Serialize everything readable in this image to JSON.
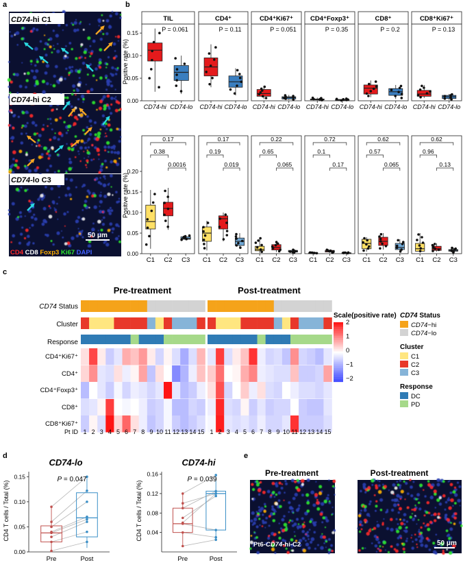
{
  "panel_letters": {
    "a": "a",
    "b": "b",
    "c": "c",
    "d": "d",
    "e": "e"
  },
  "panel_a": {
    "tiles": [
      {
        "prefix": "CD74",
        "suffix": "-hi C1"
      },
      {
        "prefix": "CD74",
        "suffix": "-hi C2"
      },
      {
        "prefix": "CD74",
        "suffix": "-lo C3"
      }
    ],
    "scale_bar": "50 μm",
    "legend": [
      {
        "label": "CD4",
        "color": "#ff2a2a"
      },
      {
        "label": "CD8",
        "color": "#ffffff"
      },
      {
        "label": "Foxp3",
        "color": "#ffb000"
      },
      {
        "label": "Ki67",
        "color": "#2ee82e"
      },
      {
        "label": "DAPI",
        "color": "#4060ff"
      }
    ],
    "colors": {
      "arrow_cyan": "#2ad8e0",
      "arrow_orange": "#f5a623"
    }
  },
  "panel_b": {
    "ylabel": "Positive rate (%)",
    "top_ticks": [
      "0.00",
      "0.05",
      "0.10",
      "0.15"
    ],
    "bottom_ticks": [
      "0.00",
      "0.05",
      "0.10",
      "0.15",
      "0.20"
    ],
    "top_x": [
      "CD74-hi",
      "CD74-lo"
    ],
    "bottom_x": [
      "C1",
      "C2",
      "C3"
    ],
    "cells": [
      {
        "title": "TIL",
        "p": "P = 0.061",
        "pairs": [
          "0.17",
          "0.38",
          "0.0016"
        ]
      },
      {
        "title": "CD4⁺",
        "p": "P = 0.11",
        "pairs": [
          "0.17",
          "0.19",
          "0.019"
        ]
      },
      {
        "title": "CD4⁺Ki67⁺",
        "p": "P = 0.051",
        "pairs": [
          "0.22",
          "0.65",
          "0.065"
        ]
      },
      {
        "title": "CD4⁺Foxp3⁺",
        "p": "P = 0.35",
        "pairs": [
          "0.72",
          "0.1",
          "0.17"
        ]
      },
      {
        "title": "CD8⁺",
        "p": "P = 0.2",
        "pairs": [
          "0.62",
          "0.57",
          "0.065"
        ]
      },
      {
        "title": "CD8⁺Ki67⁺",
        "p": "P = 0.13",
        "pairs": [
          "0.62",
          "0.96",
          "0.13"
        ]
      }
    ],
    "colors": {
      "hi": "#e41a1c",
      "lo": "#3a7ebf",
      "c1": "#ffe066",
      "c2": "#e41a1c",
      "c3": "#6fa8d6"
    }
  },
  "chart_data": [
    {
      "type": "box",
      "id": "b_top",
      "ylabel": "Positive rate (%)",
      "ylim": [
        0,
        0.17
      ],
      "groups": [
        "CD74-hi",
        "CD74-lo"
      ],
      "panels": [
        {
          "title": "TIL",
          "p": 0.061,
          "boxes": [
            [
              0.02,
              0.088,
              0.112,
              0.128,
              0.16
            ],
            [
              0.015,
              0.045,
              0.063,
              0.078,
              0.1
            ]
          ]
        },
        {
          "title": "CD4+",
          "p": 0.11,
          "boxes": [
            [
              0.03,
              0.055,
              0.075,
              0.095,
              0.125
            ],
            [
              0.012,
              0.03,
              0.042,
              0.055,
              0.072
            ]
          ]
        },
        {
          "title": "CD4+Ki67+",
          "p": 0.051,
          "boxes": [
            [
              0.004,
              0.01,
              0.016,
              0.025,
              0.033
            ],
            [
              0.002,
              0.004,
              0.007,
              0.009,
              0.013
            ]
          ]
        },
        {
          "title": "CD4+Foxp3+",
          "p": 0.35,
          "boxes": [
            [
              0.001,
              0.002,
              0.003,
              0.004,
              0.007
            ],
            [
              0.0005,
              0.001,
              0.002,
              0.003,
              0.005
            ]
          ]
        },
        {
          "title": "CD8+",
          "p": 0.2,
          "boxes": [
            [
              0.008,
              0.015,
              0.028,
              0.035,
              0.045
            ],
            [
              0.004,
              0.012,
              0.02,
              0.027,
              0.035
            ]
          ]
        },
        {
          "title": "CD8+Ki67+",
          "p": 0.13,
          "boxes": [
            [
              0.006,
              0.01,
              0.015,
              0.023,
              0.035
            ],
            [
              0.002,
              0.005,
              0.009,
              0.012,
              0.015
            ]
          ]
        }
      ]
    },
    {
      "type": "box",
      "id": "b_bottom",
      "ylabel": "Positive rate (%)",
      "ylim": [
        0,
        0.22
      ],
      "groups": [
        "C1",
        "C2",
        "C3"
      ],
      "panels": [
        {
          "title": "TIL",
          "boxes": [
            [
              0.012,
              0.06,
              0.078,
              0.118,
              0.155
            ],
            [
              0.058,
              0.092,
              0.11,
              0.125,
              0.16
            ],
            [
              0.033,
              0.035,
              0.037,
              0.041,
              0.045
            ]
          ]
        },
        {
          "title": "CD4+",
          "boxes": [
            [
              0.008,
              0.03,
              0.05,
              0.065,
              0.08
            ],
            [
              0.03,
              0.06,
              0.085,
              0.092,
              0.1
            ],
            [
              0.012,
              0.02,
              0.03,
              0.038,
              0.05
            ]
          ]
        },
        {
          "title": "CD4+Ki67+",
          "boxes": [
            [
              0.002,
              0.007,
              0.01,
              0.018,
              0.04
            ],
            [
              0.004,
              0.009,
              0.015,
              0.022,
              0.03
            ],
            [
              0.002,
              0.004,
              0.006,
              0.008,
              0.01
            ]
          ]
        },
        {
          "title": "CD4+Foxp3+",
          "boxes": [
            [
              0.001,
              0.001,
              0.002,
              0.002,
              0.003
            ],
            [
              0.002,
              0.004,
              0.006,
              0.008,
              0.01
            ],
            [
              0.001,
              0.001,
              0.002,
              0.002,
              0.003
            ]
          ]
        },
        {
          "title": "CD8+",
          "boxes": [
            [
              0.005,
              0.012,
              0.025,
              0.035,
              0.04
            ],
            [
              0.01,
              0.02,
              0.03,
              0.04,
              0.05
            ],
            [
              0.003,
              0.01,
              0.015,
              0.025,
              0.035
            ]
          ]
        },
        {
          "title": "CD8+Ki67+",
          "boxes": [
            [
              0.003,
              0.006,
              0.012,
              0.025,
              0.05
            ],
            [
              0.005,
              0.008,
              0.012,
              0.018,
              0.025
            ],
            [
              0.002,
              0.006,
              0.008,
              0.01,
              0.015
            ]
          ]
        }
      ]
    },
    {
      "type": "heatmap",
      "id": "c",
      "title_pre": "Pre-treatment",
      "title_post": "Post-treatment",
      "rows": [
        "CD4⁺Ki67⁺",
        "CD4⁺",
        "CD4⁺Foxp3⁺",
        "CD8⁺",
        "CD8⁺Ki67⁺"
      ],
      "columns_pre": [
        "1",
        "2",
        "3",
        "4",
        "5",
        "6",
        "7",
        "8",
        "9",
        "10",
        "11",
        "12",
        "13",
        "14",
        "15"
      ],
      "columns_post": [
        "1",
        "2",
        "3",
        "4",
        "5",
        "6",
        "7",
        "8",
        "9",
        "10",
        "11",
        "12",
        "13",
        "14",
        "15"
      ],
      "scale_range": [
        -2,
        2
      ],
      "scale_ticks": [
        "2",
        "1",
        "0",
        "−1",
        "−2"
      ],
      "status": [
        "hi",
        "hi",
        "hi",
        "hi",
        "hi",
        "hi",
        "hi",
        "hi",
        "lo",
        "lo",
        "lo",
        "lo",
        "lo",
        "lo",
        "lo"
      ],
      "cluster": [
        "C2",
        "C1",
        "C1",
        "C1",
        "C2",
        "C2",
        "C2",
        "C2",
        "C3",
        "C1",
        "C2",
        "C3",
        "C3",
        "C3",
        "C2"
      ],
      "response": [
        "DC",
        "DC",
        "DC",
        "DC",
        "DC",
        "DC",
        "PD",
        "DC",
        "DC",
        "DC",
        "PD",
        "PD",
        "PD",
        "PD",
        "PD"
      ],
      "values_pre": [
        [
          0.3,
          1.8,
          0.2,
          -0.6,
          -0.3,
          0.8,
          0.6,
          1.0,
          0.2,
          -0.5,
          0.1,
          -0.4,
          -1.0,
          -0.4,
          0.7
        ],
        [
          0.4,
          1.1,
          -0.3,
          -0.4,
          0.3,
          -0.2,
          0.1,
          0.9,
          -0.7,
          0.3,
          0.0,
          -1.4,
          -0.9,
          -0.2,
          0.6
        ],
        [
          -0.8,
          0.0,
          -0.3,
          -0.6,
          -0.1,
          -0.5,
          -0.2,
          -0.3,
          -0.5,
          -0.3,
          2.3,
          -0.3,
          -0.8,
          -0.6,
          -0.2
        ],
        [
          -0.4,
          -0.3,
          0.1,
          1.9,
          0.0,
          -0.1,
          0.0,
          -0.2,
          -0.6,
          -0.5,
          -0.1,
          -0.8,
          -0.8,
          -0.5,
          -0.6
        ],
        [
          -0.6,
          0.1,
          -0.4,
          2.3,
          0.4,
          1.5,
          0.3,
          -0.2,
          -0.7,
          -0.5,
          -0.1,
          -0.6,
          -0.8,
          -0.6,
          -0.4
        ]
      ],
      "values_post": [
        [
          -0.3,
          1.9,
          -0.4,
          0.2,
          0.6,
          2.0,
          -0.2,
          -0.5,
          -0.4,
          -0.7,
          1.1,
          -0.5,
          -0.6,
          -0.8,
          -0.3
        ],
        [
          0.5,
          1.4,
          0.0,
          0.1,
          0.8,
          1.2,
          -0.2,
          -0.3,
          -0.4,
          -0.4,
          0.6,
          -0.6,
          -0.6,
          -0.5,
          0.9
        ],
        [
          0.3,
          1.7,
          -0.5,
          0.0,
          0.5,
          -0.2,
          0.3,
          -0.4,
          -0.5,
          0.0,
          -0.2,
          -0.4,
          -0.4,
          -0.5,
          -0.3
        ],
        [
          -0.2,
          2.1,
          -0.4,
          -0.5,
          0.1,
          -0.6,
          -0.3,
          -0.6,
          -0.5,
          -0.5,
          0.0,
          -0.6,
          -0.7,
          -0.7,
          -0.3
        ],
        [
          -0.1,
          2.2,
          -0.3,
          -0.4,
          -0.3,
          -0.5,
          -0.2,
          -0.5,
          -0.5,
          -0.3,
          2.0,
          -0.6,
          -0.6,
          -0.6,
          -0.4
        ]
      ]
    },
    {
      "type": "box-paired",
      "id": "d_lo",
      "title": "CD74-lo",
      "p": 0.047,
      "ylabel": "CD4 T cells / Total (%)",
      "yticks": [
        "0.00",
        "0.05",
        "0.10",
        "0.15"
      ],
      "ylim": [
        0,
        0.16
      ],
      "x": [
        "Pre",
        "Post"
      ],
      "boxes": [
        [
          0.002,
          0.02,
          0.038,
          0.052,
          0.09
        ],
        [
          0.008,
          0.03,
          0.068,
          0.118,
          0.15
        ]
      ],
      "pairs": [
        [
          0.09,
          0.15
        ],
        [
          0.06,
          0.122
        ],
        [
          0.05,
          0.1
        ],
        [
          0.04,
          0.07
        ],
        [
          0.038,
          0.065
        ],
        [
          0.03,
          0.06
        ],
        [
          0.02,
          0.04
        ],
        [
          0.002,
          0.02
        ]
      ]
    },
    {
      "type": "box-paired",
      "id": "d_hi",
      "title": "CD74-hi",
      "p": 0.039,
      "ylabel": "CD4 T cells / Total (%)",
      "yticks": [
        "0.04",
        "0.08",
        "0.12",
        "0.16"
      ],
      "ylim": [
        0.0,
        0.165
      ],
      "x": [
        "Pre",
        "Post"
      ],
      "boxes": [
        [
          0.012,
          0.04,
          0.058,
          0.09,
          0.12
        ],
        [
          0.025,
          0.045,
          0.12,
          0.125,
          0.158
        ]
      ],
      "pairs": [
        [
          0.12,
          0.158
        ],
        [
          0.1,
          0.12
        ],
        [
          0.09,
          0.125
        ],
        [
          0.07,
          0.115
        ],
        [
          0.06,
          0.12
        ],
        [
          0.058,
          0.045
        ],
        [
          0.04,
          0.03
        ],
        [
          0.012,
          0.025
        ]
      ]
    }
  ],
  "panel_c": {
    "row_labels": {
      "status_prefix": "CD74",
      "status_suffix": " Status",
      "cluster": "Cluster",
      "response": "Response",
      "pt": "Pt ID"
    },
    "scale_title": "Scale(positive rate)",
    "legend": {
      "status_title_prefix": "CD74",
      "status_title_suffix": " Status",
      "status_items": [
        {
          "prefix": "CD74",
          "suffix": "−hi",
          "color": "#f5a31a"
        },
        {
          "prefix": "CD74",
          "suffix": "−lo",
          "color": "#d3d3d3"
        }
      ],
      "cluster_title": "Cluster",
      "cluster_items": [
        {
          "label": "C1",
          "color": "#ffe680"
        },
        {
          "label": "C2",
          "color": "#e8382a"
        },
        {
          "label": "C3",
          "color": "#86b4d8"
        }
      ],
      "response_title": "Response",
      "response_items": [
        {
          "label": "DC",
          "color": "#2f7bb5"
        },
        {
          "label": "PD",
          "color": "#a6d98a"
        }
      ]
    }
  },
  "panel_e": {
    "pre_title": "Pre-treatment",
    "post_title": "Post-treatment",
    "caption_prefix": "Pt6-",
    "caption_italic": "CD74",
    "caption_suffix": "-hi-C2",
    "scale_bar": "50 μm"
  }
}
